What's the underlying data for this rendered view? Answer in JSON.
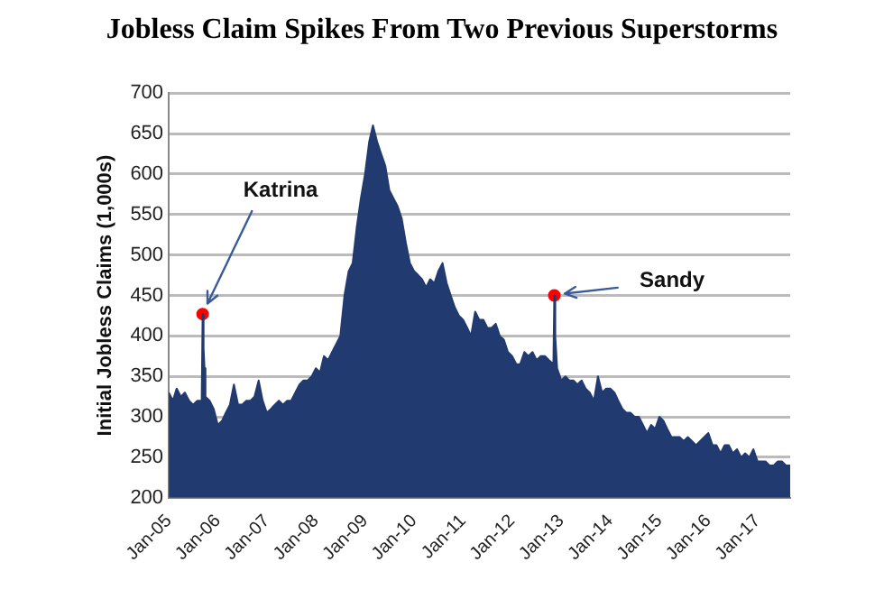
{
  "chart_data": {
    "type": "area",
    "title": "Jobless Claim Spikes From Two Previous Superstorms",
    "ylabel": "Initial Jobless Claims (1,000s)",
    "annotations": [
      {
        "text": "Katrina",
        "x": "2005-09-10",
        "y": 427
      },
      {
        "text": "Sandy",
        "x": "2012-11-10",
        "y": 450
      }
    ],
    "x": [
      "2005-01",
      "2005-02",
      "2005-03",
      "2005-04",
      "2005-05",
      "2005-06",
      "2005-07",
      "2005-08",
      "2005-09-03",
      "2005-09-10",
      "2005-09-17",
      "2005-09-24",
      "2005-10",
      "2005-11",
      "2005-12",
      "2006-01",
      "2006-02",
      "2006-03",
      "2006-04",
      "2006-05",
      "2006-06",
      "2006-07",
      "2006-08",
      "2006-09",
      "2006-10",
      "2006-11",
      "2006-12",
      "2007-01",
      "2007-02",
      "2007-03",
      "2007-04",
      "2007-05",
      "2007-06",
      "2007-07",
      "2007-08",
      "2007-09",
      "2007-10",
      "2007-11",
      "2007-12",
      "2008-01",
      "2008-02",
      "2008-03",
      "2008-04",
      "2008-05",
      "2008-06",
      "2008-07",
      "2008-08",
      "2008-09",
      "2008-10",
      "2008-11",
      "2008-12",
      "2009-01",
      "2009-02",
      "2009-03",
      "2009-04",
      "2009-05",
      "2009-06",
      "2009-07",
      "2009-08",
      "2009-09",
      "2009-10",
      "2009-11",
      "2009-12",
      "2010-01",
      "2010-02",
      "2010-03",
      "2010-04",
      "2010-05",
      "2010-06",
      "2010-07",
      "2010-08",
      "2010-09",
      "2010-10",
      "2010-11",
      "2010-12",
      "2011-01",
      "2011-02",
      "2011-03",
      "2011-04",
      "2011-05",
      "2011-06",
      "2011-07",
      "2011-08",
      "2011-09",
      "2011-10",
      "2011-11",
      "2011-12",
      "2012-01",
      "2012-02",
      "2012-03",
      "2012-04",
      "2012-05",
      "2012-06",
      "2012-07",
      "2012-08",
      "2012-09",
      "2012-10",
      "2012-11-03",
      "2012-11-10",
      "2012-11-17",
      "2012-12",
      "2013-01",
      "2013-02",
      "2013-03",
      "2013-04",
      "2013-05",
      "2013-06",
      "2013-07",
      "2013-08",
      "2013-09",
      "2013-10",
      "2013-11",
      "2013-12",
      "2014-01",
      "2014-02",
      "2014-03",
      "2014-04",
      "2014-05",
      "2014-06",
      "2014-07",
      "2014-08",
      "2014-09",
      "2014-10",
      "2014-11",
      "2014-12",
      "2015-01",
      "2015-02",
      "2015-03",
      "2015-04",
      "2015-05",
      "2015-06",
      "2015-07",
      "2015-08",
      "2015-09",
      "2015-10",
      "2015-11",
      "2015-12",
      "2016-01",
      "2016-02",
      "2016-03",
      "2016-04",
      "2016-05",
      "2016-06",
      "2016-07",
      "2016-08",
      "2016-09",
      "2016-10",
      "2016-11",
      "2016-12",
      "2017-01",
      "2017-02",
      "2017-03",
      "2017-04",
      "2017-05",
      "2017-06",
      "2017-07",
      "2017-08",
      "2017-09"
    ],
    "series": [
      {
        "color": "#213a6f",
        "values": [
          330,
          320,
          335,
          325,
          330,
          320,
          315,
          320,
          320,
          427,
          385,
          360,
          325,
          320,
          310,
          290,
          295,
          305,
          315,
          340,
          315,
          315,
          320,
          320,
          325,
          345,
          320,
          305,
          310,
          315,
          320,
          315,
          320,
          320,
          330,
          340,
          345,
          345,
          350,
          360,
          355,
          375,
          370,
          380,
          390,
          400,
          450,
          480,
          490,
          535,
          570,
          600,
          640,
          660,
          640,
          625,
          610,
          580,
          570,
          560,
          545,
          515,
          490,
          480,
          475,
          470,
          460,
          470,
          465,
          480,
          490,
          465,
          450,
          435,
          425,
          420,
          410,
          400,
          430,
          420,
          420,
          410,
          410,
          415,
          400,
          395,
          380,
          375,
          365,
          365,
          380,
          375,
          380,
          370,
          375,
          375,
          370,
          365,
          450,
          400,
          360,
          345,
          350,
          345,
          345,
          340,
          345,
          335,
          330,
          320,
          350,
          330,
          335,
          335,
          330,
          320,
          310,
          305,
          305,
          300,
          300,
          290,
          280,
          290,
          285,
          300,
          295,
          285,
          275,
          275,
          275,
          270,
          275,
          270,
          265,
          270,
          275,
          280,
          265,
          265,
          255,
          265,
          265,
          255,
          260,
          250,
          255,
          250,
          260,
          245,
          245,
          245,
          240,
          240,
          245,
          245,
          240,
          240
        ]
      },
      {
        "type": "scatter",
        "color": "#ff0000",
        "x": [
          "2005-09-10",
          "2012-11-10"
        ],
        "values": [
          427,
          450
        ]
      }
    ],
    "xlim": [
      "2005-01",
      "2017-09"
    ],
    "xticks": [
      {
        "value": "2005-01",
        "label": "Jan-05"
      },
      {
        "value": "2006-01",
        "label": "Jan-06"
      },
      {
        "value": "2007-01",
        "label": "Jan-07"
      },
      {
        "value": "2008-01",
        "label": "Jan-08"
      },
      {
        "value": "2009-01",
        "label": "Jan-09"
      },
      {
        "value": "2010-01",
        "label": "Jan-10"
      },
      {
        "value": "2011-01",
        "label": "Jan-11"
      },
      {
        "value": "2012-01",
        "label": "Jan-12"
      },
      {
        "value": "2013-01",
        "label": "Jan-13"
      },
      {
        "value": "2014-01",
        "label": "Jan-14"
      },
      {
        "value": "2015-01",
        "label": "Jan-15"
      },
      {
        "value": "2016-01",
        "label": "Jan-16"
      },
      {
        "value": "2017-01",
        "label": "Jan-17"
      }
    ],
    "ylim": [
      200,
      700
    ],
    "yticks": [
      200,
      250,
      300,
      350,
      400,
      450,
      500,
      550,
      600,
      650,
      700
    ],
    "grid": "y"
  }
}
